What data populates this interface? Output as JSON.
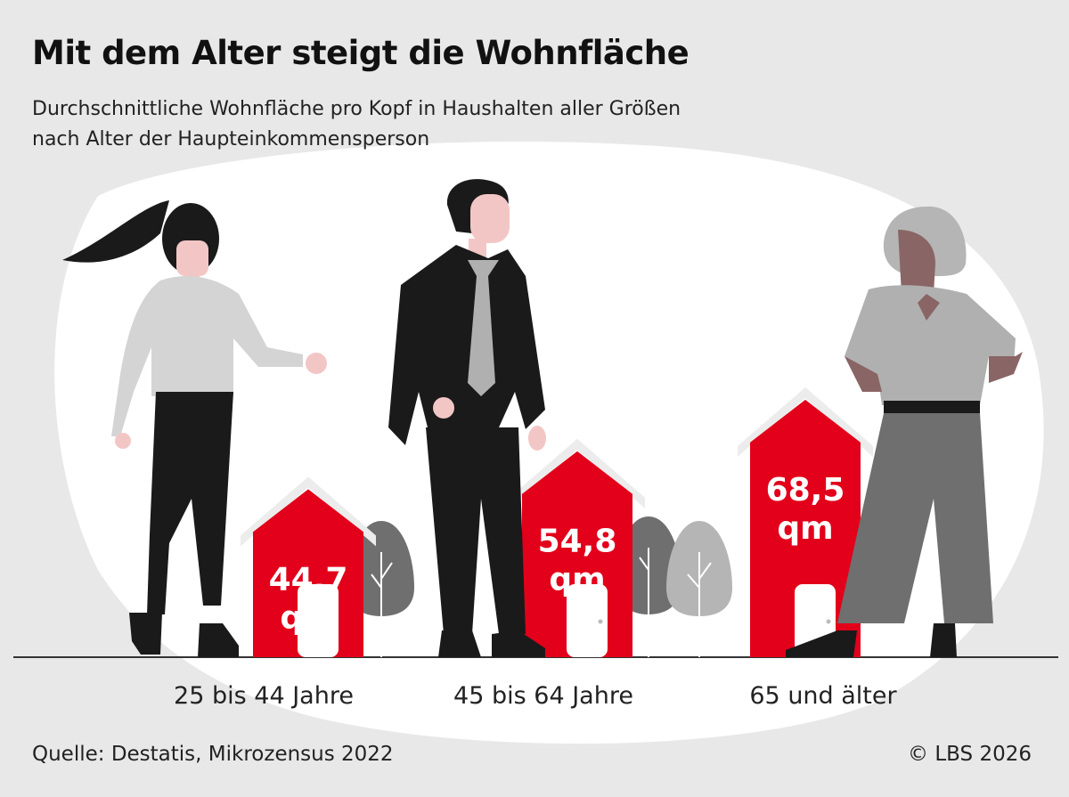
{
  "title": "Mit dem Alter steigt die Wohnfläche",
  "subtitle_lines": [
    "Durchschnittliche Wohnfläche pro Kopf in Haushalten aller Größen",
    "nach Alter der Haupteinkommensperson"
  ],
  "source": "Quelle: Destatis, Mikrozensus 2022",
  "copyright": "© LBS 2026",
  "colors": {
    "background": "#e8e8e8",
    "blob": "#ffffff",
    "bar": "#e2001a",
    "text": "#222222"
  },
  "chart_data": {
    "type": "bar",
    "categories": [
      "25 bis 44 Jahre",
      "45 bis 64 Jahre",
      "65 und älter"
    ],
    "values": [
      44.7,
      54.8,
      68.5
    ],
    "value_labels": [
      "44,7",
      "54,8",
      "68,5"
    ],
    "unit": "qm",
    "title": "Mit dem Alter steigt die Wohnfläche",
    "subtitle": "Durchschnittliche Wohnfläche pro Kopf in Haushalten aller Größen nach Alter der Haupteinkommensperson",
    "xlabel": "",
    "ylabel": "",
    "grid": false,
    "legend": "none",
    "bar_shape": "house"
  }
}
